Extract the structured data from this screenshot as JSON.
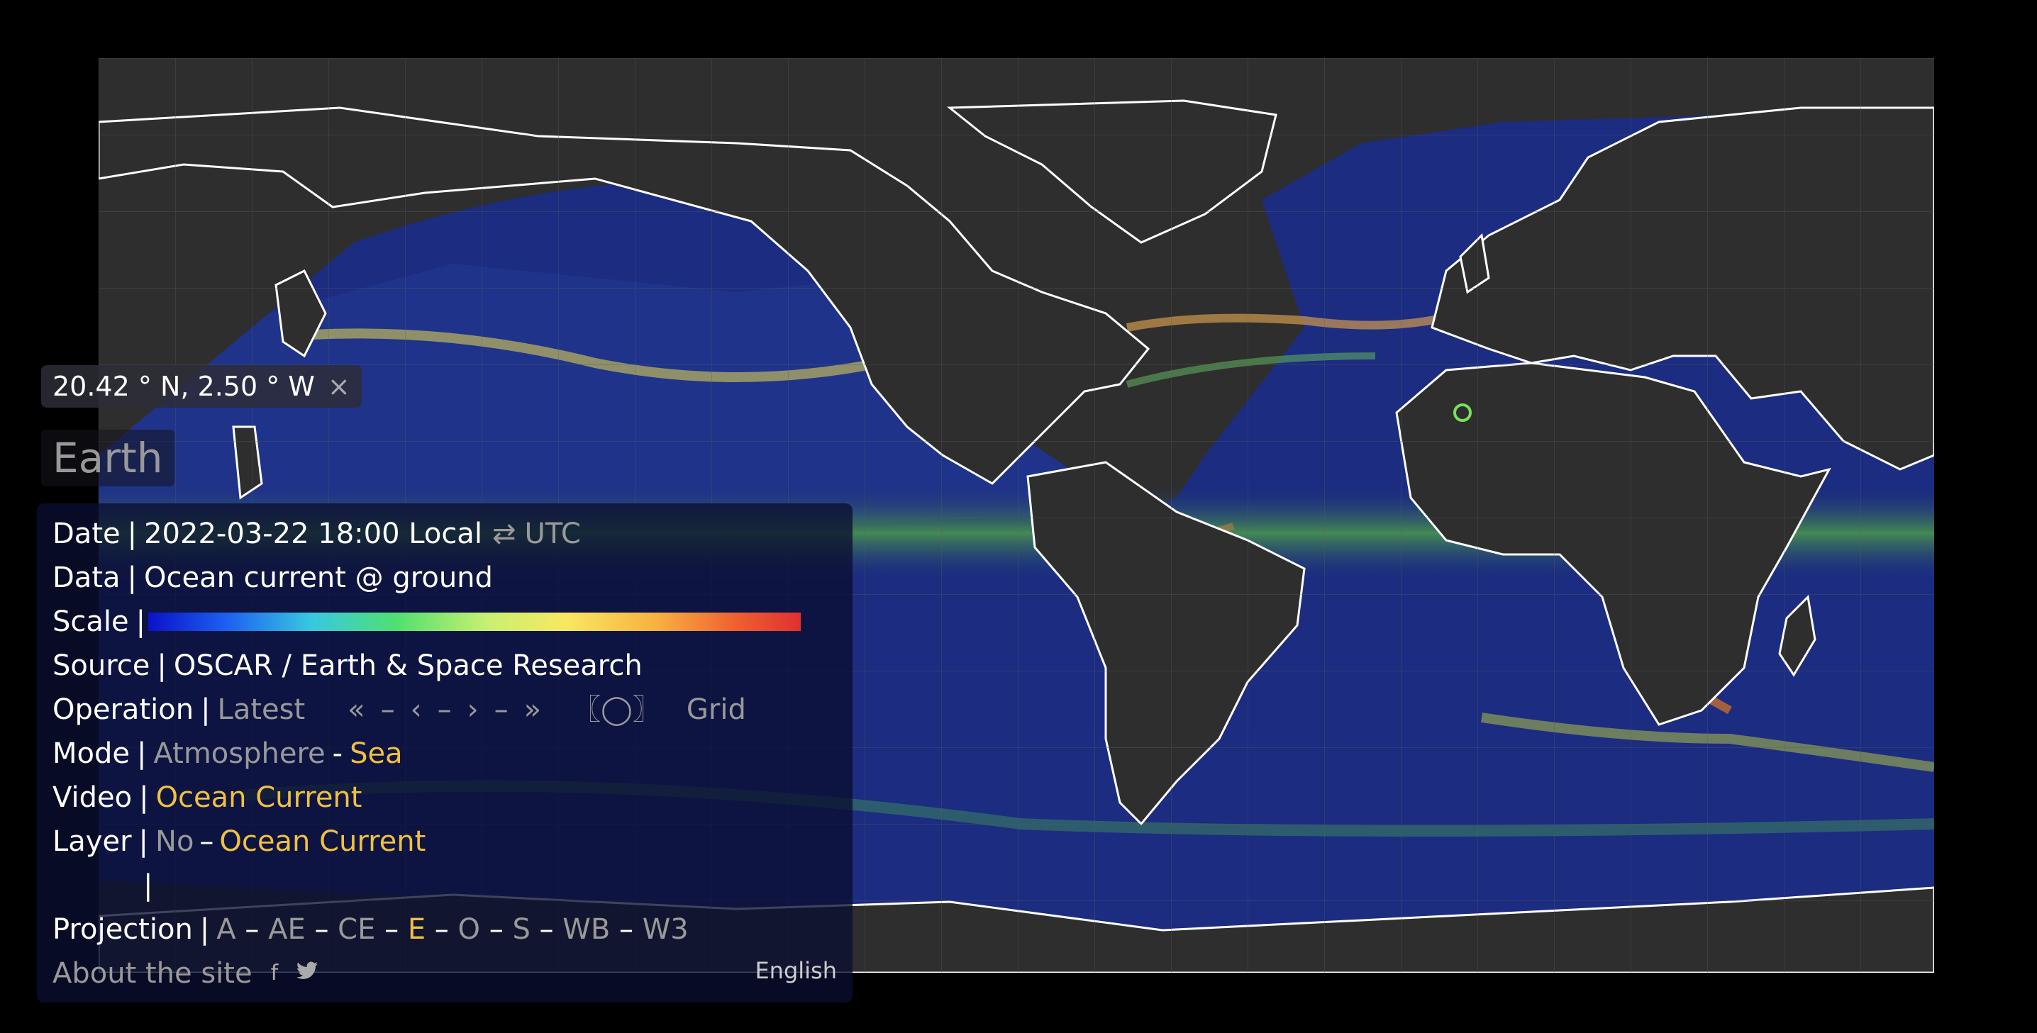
{
  "location": {
    "text": "20.42 ° N, 2.50 ° W",
    "close": "×"
  },
  "title": "Earth",
  "panel": {
    "date": {
      "label": "Date",
      "value": "2022-03-22 18:00 Local",
      "swap": "⇄",
      "utc": "UTC"
    },
    "data": {
      "label": "Data",
      "value": "Ocean current @ ground"
    },
    "scale": {
      "label": "Scale",
      "colors": [
        "#0a12c8",
        "#38c8e0",
        "#50e070",
        "#f8e860",
        "#e03030"
      ]
    },
    "source": {
      "label": "Source",
      "value": "OSCAR / Earth & Space Research"
    },
    "operation": {
      "label": "Operation",
      "latest": "Latest",
      "nav": [
        "«",
        "–",
        "‹",
        "–",
        "›",
        "–",
        "»"
      ],
      "locate": "〖◯〗",
      "grid": "Grid"
    },
    "mode": {
      "label": "Mode",
      "atmosphere": "Atmosphere",
      "dash": "-",
      "sea": "Sea"
    },
    "video": {
      "label": "Video",
      "value": "Ocean Current"
    },
    "layer": {
      "label": "Layer",
      "none": "No",
      "dash": "–",
      "value": "Ocean Current"
    },
    "projection": {
      "label": "Projection",
      "options": [
        "A",
        "AE",
        "CE",
        "E",
        "O",
        "S",
        "WB",
        "W3"
      ],
      "selected": "E"
    },
    "about": "About the site",
    "facebook_icon": "f",
    "twitter_icon": "🐦",
    "language": "English"
  },
  "map": {
    "background": "#2e2e2e",
    "ocean_colors": [
      "#1a2a7a",
      "#2a48b0",
      "#3d9a5a",
      "#d8c050",
      "#d05030"
    ]
  }
}
